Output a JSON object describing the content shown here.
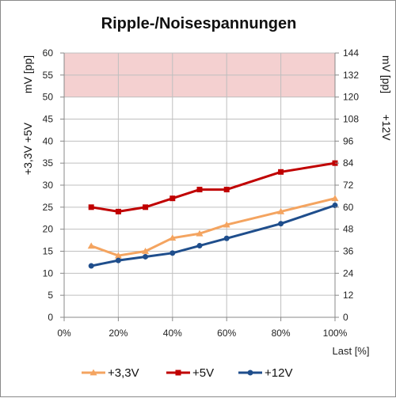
{
  "chart_data": {
    "type": "line",
    "title": "Ripple-/Noisespannungen",
    "xlabel": "Last [%]",
    "ylabel_left": "+3,3V +5V",
    "ylabel_left_unit": "mV [pp]",
    "ylabel_right": "+12V",
    "ylabel_right_unit": "mV [pp]",
    "xlim": [
      0,
      100
    ],
    "ylim_left": [
      0,
      60
    ],
    "ylim_right": [
      0,
      144
    ],
    "x_ticks": [
      "0%",
      "20%",
      "40%",
      "60%",
      "80%",
      "100%"
    ],
    "y_left_ticks": [
      "0",
      "5",
      "10",
      "15",
      "20",
      "25",
      "30",
      "35",
      "40",
      "45",
      "50",
      "55",
      "60"
    ],
    "y_right_ticks": [
      "0",
      "12",
      "24",
      "36",
      "48",
      "60",
      "72",
      "84",
      "96",
      "108",
      "120",
      "132",
      "144"
    ],
    "limit_band": {
      "from": 50,
      "to": 60,
      "axis": "left",
      "color": "#f4d0d0"
    },
    "grid": true,
    "legend_position": "bottom",
    "x": [
      10,
      20,
      30,
      40,
      50,
      60,
      80,
      100
    ],
    "series": [
      {
        "name": "+3,3V",
        "axis": "left",
        "color": "#f4a460",
        "marker": "triangle",
        "values": [
          16.2,
          14.0,
          15.0,
          18.0,
          19.0,
          21.0,
          24.0,
          27.0
        ]
      },
      {
        "name": "+5V",
        "axis": "left",
        "color": "#c00000",
        "marker": "square",
        "values": [
          25.0,
          24.0,
          25.0,
          27.0,
          29.0,
          29.0,
          33.0,
          35.0
        ]
      },
      {
        "name": "+12V",
        "axis": "right",
        "color": "#1f4e8c",
        "marker": "circle",
        "values": [
          28.0,
          31.0,
          33.0,
          35.0,
          39.0,
          43.0,
          51.0,
          61.0
        ]
      }
    ]
  }
}
